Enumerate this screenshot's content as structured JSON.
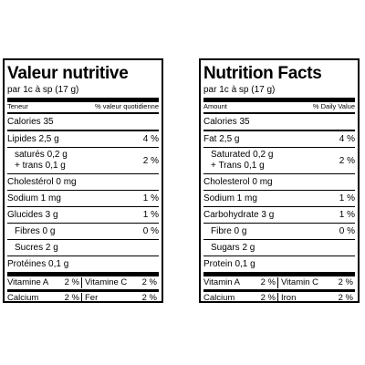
{
  "labels": {
    "fr": {
      "title": "Valeur nutritive",
      "serving": "par 1c à sp (17 g)",
      "amount_header": "Teneur",
      "dv_header": "% valeur quotidienne",
      "calories": "Calories 35",
      "fat": {
        "label": "Lipides 2,5 g",
        "dv": "4 %"
      },
      "saturated": "saturés 0,2 g",
      "trans": "+ trans 0,1 g",
      "sat_trans_dv": "2 %",
      "cholesterol": "Cholestérol 0 mg",
      "sodium": {
        "label": "Sodium 1 mg",
        "dv": "1 %"
      },
      "carbohydrate": {
        "label": "Glucides 3 g",
        "dv": "1 %"
      },
      "fibre": {
        "label": "Fibres 0 g",
        "dv": "0 %"
      },
      "sugars": "Sucres 2 g",
      "protein": "Protéines 0,1 g",
      "vitamin_a": {
        "label": "Vitamine A",
        "dv": "2 %"
      },
      "vitamin_c": {
        "label": "Vitamine C",
        "dv": "2 %"
      },
      "calcium": {
        "label": "Calcium",
        "dv": "2 %"
      },
      "iron": {
        "label": "Fer",
        "dv": "2 %"
      }
    },
    "en": {
      "title": "Nutrition Facts",
      "serving": "par 1c à sp (17 g)",
      "amount_header": "Amount",
      "dv_header": "% Daily Value",
      "calories": "Calories 35",
      "fat": {
        "label": "Fat 2,5 g",
        "dv": "4 %"
      },
      "saturated": "Saturated 0,2 g",
      "trans": "+ Trans 0,1 g",
      "sat_trans_dv": "2 %",
      "cholesterol": "Cholesterol 0 mg",
      "sodium": {
        "label": "Sodium 1 mg",
        "dv": "1 %"
      },
      "carbohydrate": {
        "label": "Carbohydrate 3 g",
        "dv": "1 %"
      },
      "fibre": {
        "label": "Fibre 0 g",
        "dv": "0 %"
      },
      "sugars": "Sugars 2 g",
      "protein": "Protein 0,1 g",
      "vitamin_a": {
        "label": "Vitamin A",
        "dv": "2 %"
      },
      "vitamin_c": {
        "label": "Vitamin C",
        "dv": "2 %"
      },
      "calcium": {
        "label": "Calcium",
        "dv": "2 %"
      },
      "iron": {
        "label": "Iron",
        "dv": "2 %"
      }
    }
  }
}
